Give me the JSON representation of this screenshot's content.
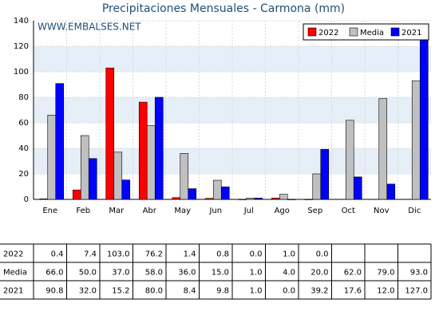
{
  "chart_data": {
    "type": "bar",
    "title": "Precipitaciones Mensuales - Carmona (mm)",
    "annotation": "WWW.EMBALSES.NET",
    "categories": [
      "Ene",
      "Feb",
      "Mar",
      "Abr",
      "May",
      "Jun",
      "Jul",
      "Ago",
      "Sep",
      "Oct",
      "Nov",
      "Dic"
    ],
    "series": [
      {
        "name": "2022",
        "color": "#ff0000",
        "values": [
          0.4,
          7.4,
          103.0,
          76.2,
          1.4,
          0.8,
          0.0,
          1.0,
          0.0,
          null,
          null,
          null
        ],
        "value_labels": [
          "0.4",
          "7.4",
          "103.0",
          "76.2",
          "1.4",
          "0.8",
          "0.0",
          "1.0",
          "0.0",
          null,
          null,
          null
        ]
      },
      {
        "name": "Media",
        "color": "#c0c0c0",
        "values": [
          66.0,
          50.0,
          37.0,
          58.0,
          36.0,
          15.0,
          1.0,
          4.0,
          20.0,
          62.0,
          79.0,
          93.0
        ],
        "value_labels": [
          "66.0",
          "50.0",
          "37.0",
          "58.0",
          "36.0",
          "15.0",
          "1.0",
          "4.0",
          "20.0",
          "62.0",
          "79.0",
          "93.0"
        ]
      },
      {
        "name": "2021",
        "color": "#0000ff",
        "values": [
          90.8,
          32.0,
          15.2,
          80.0,
          8.4,
          9.8,
          1.0,
          0.0,
          39.2,
          17.6,
          12.0,
          127.0
        ],
        "value_labels": [
          "90.8",
          "32.0",
          "15.2",
          "80.0",
          "8.4",
          "9.8",
          "1.0",
          "0.0",
          "39.2",
          "17.6",
          "12.0",
          "127.0"
        ]
      }
    ],
    "ylim": [
      0,
      140
    ],
    "yticks": [
      0,
      20,
      40,
      60,
      80,
      100,
      120,
      140
    ],
    "grid": true,
    "legend": "top-right"
  }
}
